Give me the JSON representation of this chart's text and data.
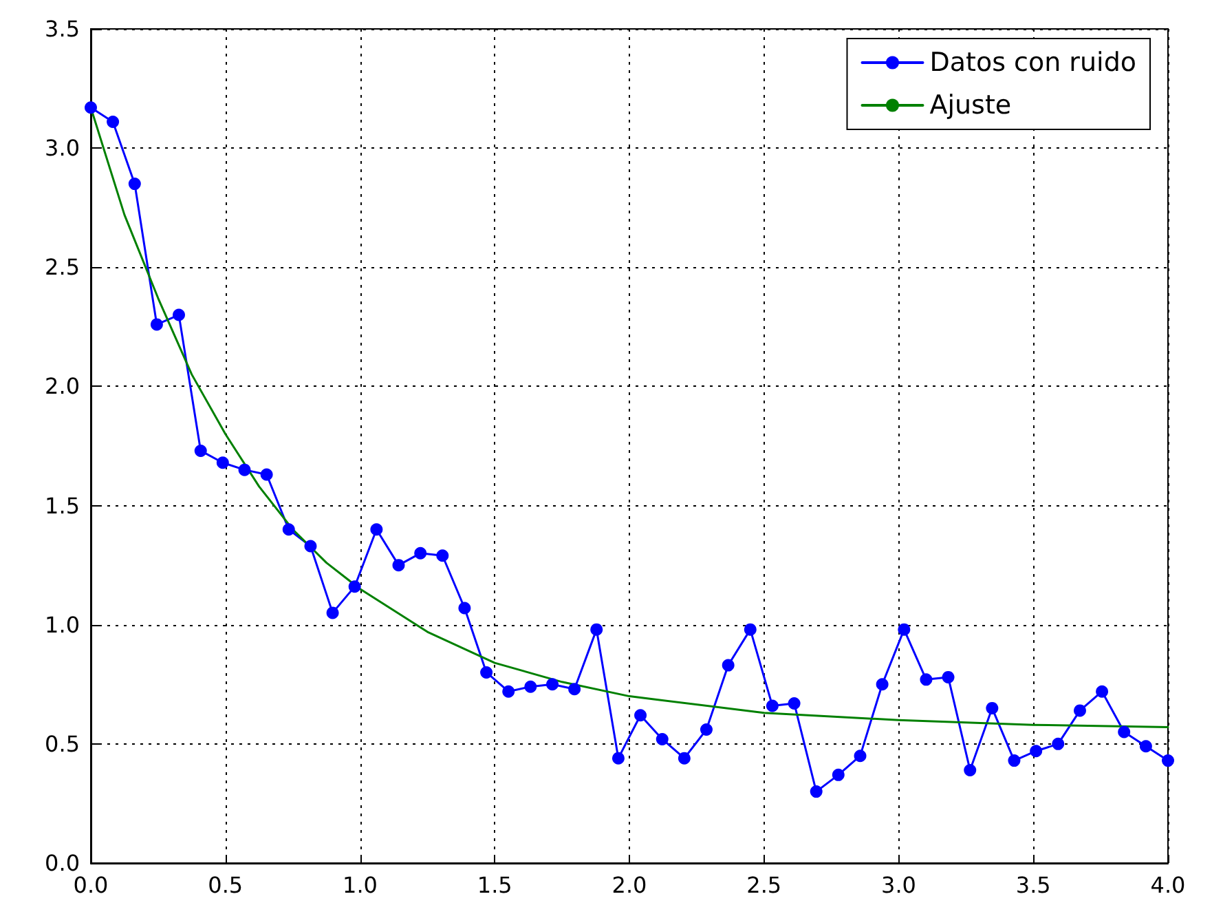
{
  "chart_data": {
    "type": "line",
    "marker": "circle",
    "grid": true,
    "legend": "top right",
    "xlim": [
      0,
      4
    ],
    "ylim": [
      0,
      3.5
    ],
    "xticks": [
      {
        "value": 0,
        "label": "0.0"
      },
      {
        "value": 0.5,
        "label": "0.5"
      },
      {
        "value": 1,
        "label": "1.0"
      },
      {
        "value": 1.5,
        "label": "1.5"
      },
      {
        "value": 2,
        "label": "2.0"
      },
      {
        "value": 2.5,
        "label": "2.5"
      },
      {
        "value": 3,
        "label": "3.0"
      },
      {
        "value": 3.5,
        "label": "3.5"
      },
      {
        "value": 4,
        "label": "4.0"
      }
    ],
    "yticks": [
      {
        "value": 0,
        "label": "0.0"
      },
      {
        "value": 0.5,
        "label": "0.5"
      },
      {
        "value": 1,
        "label": "1.0"
      },
      {
        "value": 1.5,
        "label": "1.5"
      },
      {
        "value": 2,
        "label": "2.0"
      },
      {
        "value": 2.5,
        "label": "2.5"
      },
      {
        "value": 3,
        "label": "3.0"
      },
      {
        "value": 3.5,
        "label": "3.5"
      }
    ],
    "series": [
      {
        "name": "Datos con ruido",
        "color": "#0000ff",
        "x": [
          0,
          0.082,
          0.163,
          0.245,
          0.327,
          0.408,
          0.49,
          0.571,
          0.653,
          0.735,
          0.816,
          0.898,
          0.98,
          1.061,
          1.143,
          1.224,
          1.306,
          1.388,
          1.469,
          1.551,
          1.633,
          1.714,
          1.796,
          1.878,
          1.959,
          2.041,
          2.122,
          2.204,
          2.286,
          2.367,
          2.449,
          2.531,
          2.612,
          2.694,
          2.776,
          2.857,
          2.939,
          3.02,
          3.102,
          3.184,
          3.265,
          3.347,
          3.429,
          3.51,
          3.592,
          3.673,
          3.755,
          3.837,
          3.918,
          4.0
        ],
        "values": [
          3.17,
          3.11,
          2.85,
          2.26,
          2.3,
          1.73,
          1.68,
          1.65,
          1.63,
          1.4,
          1.33,
          1.05,
          1.16,
          1.4,
          1.25,
          1.3,
          1.29,
          1.07,
          0.8,
          0.72,
          0.74,
          0.75,
          0.73,
          0.98,
          0.44,
          0.62,
          0.52,
          0.44,
          0.56,
          0.83,
          0.98,
          0.66,
          0.67,
          0.3,
          0.37,
          0.45,
          0.75,
          0.98,
          0.77,
          0.78,
          0.39,
          0.65,
          0.43,
          0.47,
          0.5,
          0.64,
          0.72,
          0.55,
          0.49,
          0.43
        ]
      },
      {
        "name": "Ajuste",
        "color": "#008000",
        "marker": "none",
        "x": [
          0,
          0.125,
          0.25,
          0.375,
          0.5,
          0.625,
          0.75,
          0.875,
          1.0,
          1.25,
          1.5,
          1.75,
          2.0,
          2.5,
          3.0,
          3.5,
          4.0
        ],
        "values": [
          3.17,
          2.72,
          2.37,
          2.05,
          1.8,
          1.58,
          1.4,
          1.26,
          1.15,
          0.97,
          0.84,
          0.76,
          0.7,
          0.63,
          0.6,
          0.58,
          0.57
        ]
      }
    ]
  }
}
